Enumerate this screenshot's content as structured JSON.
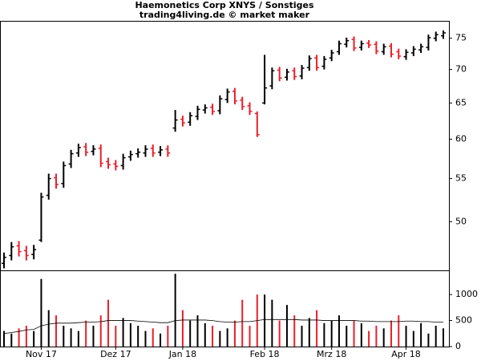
{
  "chart_data": [
    {
      "type": "ohlc",
      "title": "Haemonetics Corp XNYS / Sonstiges",
      "subtitle": "trading4living.de © market maker",
      "categories": [
        null,
        null,
        null,
        null,
        null,
        "Nov 17",
        null,
        null,
        null,
        null,
        null,
        null,
        null,
        null,
        null,
        "Dez 17",
        null,
        null,
        null,
        null,
        null,
        null,
        null,
        null,
        "Jan 18",
        null,
        null,
        null,
        null,
        null,
        null,
        null,
        null,
        null,
        null,
        "Feb 18",
        null,
        null,
        null,
        null,
        null,
        null,
        null,
        null,
        "Mrz 18",
        null,
        null,
        null,
        null,
        null,
        null,
        null,
        null,
        null,
        "Apr 18",
        null,
        null,
        null,
        null,
        null
      ],
      "open": [
        45.6,
        46.4,
        47.4,
        46.9,
        46.5,
        48.0,
        53.0,
        55.1,
        54.4,
        56.8,
        58.2,
        59.0,
        58.4,
        58.8,
        57.1,
        56.8,
        56.6,
        57.7,
        58.1,
        58.2,
        58.8,
        58.3,
        58.7,
        61.5,
        62.7,
        62.3,
        63.1,
        64.0,
        64.4,
        63.9,
        65.5,
        66.7,
        65.4,
        64.6,
        63.5,
        65.0,
        67.5,
        69.9,
        68.8,
        69.8,
        69.0,
        70.3,
        71.8,
        70.5,
        71.8,
        72.8,
        74.0,
        74.8,
        73.5,
        74.2,
        74.0,
        72.8,
        73.7,
        72.8,
        72.0,
        72.6,
        73.1,
        73.5,
        75.0,
        75.4
      ],
      "high": [
        46.7,
        47.8,
        47.9,
        47.4,
        47.5,
        53.3,
        55.6,
        55.6,
        57.1,
        58.6,
        59.4,
        59.5,
        59.2,
        59.3,
        57.6,
        57.3,
        58.1,
        58.5,
        58.8,
        59.2,
        59.3,
        59.1,
        59.2,
        64.0,
        63.2,
        63.7,
        64.6,
        64.8,
        64.9,
        66.1,
        67.1,
        67.2,
        65.9,
        65.1,
        63.8,
        72.3,
        70.3,
        70.4,
        70.1,
        70.3,
        70.7,
        72.2,
        72.3,
        72.1,
        73.1,
        74.6,
        75.1,
        75.3,
        74.6,
        74.7,
        74.5,
        74.1,
        74.2,
        73.3,
        73.2,
        73.7,
        74.1,
        75.6,
        76.1,
        76.3
      ],
      "low": [
        45.1,
        45.9,
        46.3,
        45.9,
        46.0,
        47.8,
        52.5,
        53.8,
        53.9,
        56.3,
        57.7,
        57.8,
        57.9,
        56.4,
        56.2,
        56.0,
        56.1,
        57.2,
        57.6,
        57.7,
        57.7,
        57.8,
        57.7,
        61.0,
        61.7,
        61.8,
        62.6,
        63.5,
        63.3,
        63.4,
        65.0,
        64.8,
        64.0,
        63.3,
        60.3,
        64.8,
        67.0,
        68.2,
        68.3,
        68.4,
        68.5,
        69.8,
        69.8,
        70.0,
        71.3,
        72.3,
        73.5,
        72.9,
        73.0,
        73.4,
        72.4,
        72.3,
        71.9,
        71.6,
        71.5,
        72.1,
        72.6,
        73.0,
        74.5,
        74.9
      ],
      "close": [
        46.2,
        47.3,
        46.8,
        46.4,
        47.0,
        52.8,
        55.0,
        54.3,
        56.6,
        58.1,
        58.9,
        58.3,
        58.7,
        56.9,
        56.7,
        56.5,
        57.6,
        58.0,
        58.3,
        58.7,
        58.2,
        58.6,
        58.2,
        62.6,
        62.2,
        63.2,
        64.1,
        64.3,
        63.8,
        65.6,
        66.6,
        65.3,
        64.5,
        63.8,
        60.6,
        67.2,
        69.8,
        68.7,
        69.6,
        68.9,
        70.2,
        71.7,
        70.3,
        71.6,
        72.6,
        74.1,
        74.6,
        73.4,
        74.1,
        73.9,
        72.9,
        73.6,
        72.4,
        72.1,
        72.7,
        73.2,
        73.6,
        75.1,
        75.6,
        75.9
      ],
      "up_color": "#000000",
      "down_color": "#e8202a",
      "ylim": [
        44.9,
        77.8
      ],
      "log_scale": true,
      "yticks": [
        50,
        55,
        60,
        65,
        70,
        75
      ]
    },
    {
      "type": "bar",
      "values": [
        300,
        250,
        350,
        400,
        300,
        1300,
        700,
        600,
        400,
        350,
        300,
        500,
        400,
        600,
        900,
        400,
        550,
        450,
        400,
        300,
        350,
        250,
        400,
        1400,
        700,
        500,
        600,
        450,
        400,
        300,
        350,
        500,
        900,
        400,
        1000,
        1000,
        900,
        500,
        800,
        600,
        400,
        550,
        700,
        450,
        500,
        600,
        400,
        500,
        450,
        300,
        400,
        350,
        500,
        600,
        400,
        300,
        450,
        250,
        400,
        350
      ],
      "average": [
        250,
        270,
        290,
        320,
        330,
        400,
        430,
        450,
        450,
        450,
        460,
        470,
        470,
        480,
        500,
        500,
        500,
        500,
        490,
        480,
        470,
        460,
        460,
        500,
        510,
        510,
        510,
        510,
        500,
        480,
        470,
        470,
        480,
        480,
        500,
        520,
        520,
        520,
        520,
        520,
        510,
        510,
        510,
        500,
        500,
        500,
        500,
        500,
        490,
        490,
        480,
        480,
        480,
        480,
        490,
        490,
        480,
        480,
        470,
        470
      ],
      "average_color": "#000000",
      "ylim": [
        0,
        1450
      ],
      "yticks": [
        0,
        500,
        1000
      ]
    }
  ]
}
